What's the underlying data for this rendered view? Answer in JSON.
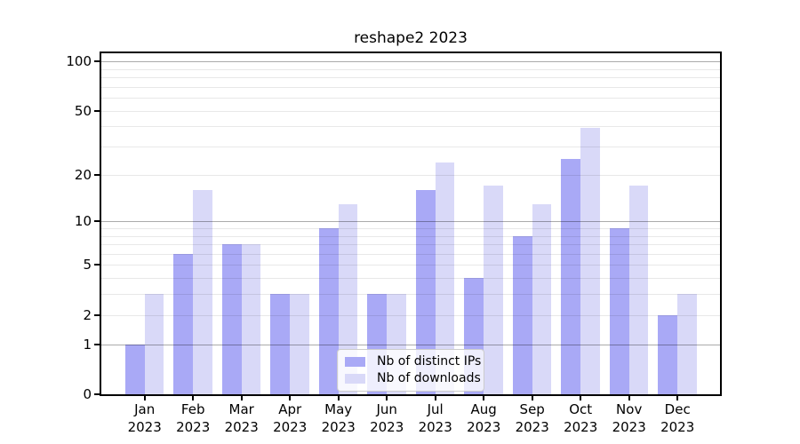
{
  "chart_data": {
    "type": "bar",
    "title": "reshape2 2023",
    "year": "2023",
    "categories": [
      "Jan",
      "Feb",
      "Mar",
      "Apr",
      "May",
      "Jun",
      "Jul",
      "Aug",
      "Sep",
      "Oct",
      "Nov",
      "Dec"
    ],
    "series": [
      {
        "name": "Nb of distinct IPs",
        "color": "#a9a9f6",
        "values": [
          1,
          6,
          7,
          3,
          9,
          3,
          16,
          4,
          8,
          25,
          9,
          2
        ]
      },
      {
        "name": "Nb of downloads",
        "color": "#d9d9f8",
        "values": [
          3,
          16,
          7,
          3,
          13,
          3,
          24,
          17,
          13,
          39,
          17,
          3
        ]
      }
    ],
    "yticks": [
      0,
      1,
      2,
      5,
      10,
      20,
      50,
      100
    ],
    "ylim": [
      0,
      112
    ],
    "yscale": "log1p",
    "grid": true,
    "legend_position": "lower center",
    "xlabel": "",
    "ylabel": ""
  }
}
